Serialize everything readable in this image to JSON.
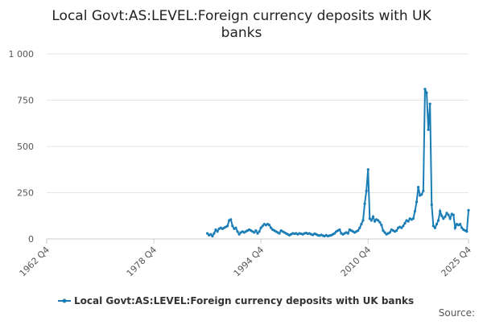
{
  "chart_data": {
    "type": "line",
    "title": "Local Govt:AS:LEVEL:Foreign currency deposits with UK banks",
    "source": "Source:",
    "xlim": [
      "1962 Q4",
      "2025 Q4"
    ],
    "xticks": [
      "1962 Q4",
      "1978 Q4",
      "1994 Q4",
      "2010 Q4",
      "2025 Q4"
    ],
    "ylim": [
      0,
      1000
    ],
    "yticks": [
      0,
      250,
      500,
      750,
      {
        "value": 1000,
        "label": "1 000"
      }
    ],
    "grid": true,
    "x": [
      "1986 Q4",
      "1987 Q1",
      "1987 Q2",
      "1987 Q3",
      "1987 Q4",
      "1988 Q1",
      "1988 Q2",
      "1988 Q3",
      "1988 Q4",
      "1989 Q1",
      "1989 Q2",
      "1989 Q3",
      "1989 Q4",
      "1990 Q1",
      "1990 Q2",
      "1990 Q3",
      "1990 Q4",
      "1991 Q1",
      "1991 Q2",
      "1991 Q3",
      "1991 Q4",
      "1992 Q1",
      "1992 Q2",
      "1992 Q3",
      "1992 Q4",
      "1993 Q1",
      "1993 Q2",
      "1993 Q3",
      "1993 Q4",
      "1994 Q1",
      "1994 Q2",
      "1994 Q3",
      "1994 Q4",
      "1995 Q1",
      "1995 Q2",
      "1995 Q3",
      "1995 Q4",
      "1996 Q1",
      "1996 Q2",
      "1996 Q3",
      "1996 Q4",
      "1997 Q1",
      "1997 Q2",
      "1997 Q3",
      "1997 Q4",
      "1998 Q1",
      "1998 Q2",
      "1998 Q3",
      "1998 Q4",
      "1999 Q1",
      "1999 Q2",
      "1999 Q3",
      "1999 Q4",
      "2000 Q1",
      "2000 Q2",
      "2000 Q3",
      "2000 Q4",
      "2001 Q1",
      "2001 Q2",
      "2001 Q3",
      "2001 Q4",
      "2002 Q1",
      "2002 Q2",
      "2002 Q3",
      "2002 Q4",
      "2003 Q1",
      "2003 Q2",
      "2003 Q3",
      "2003 Q4",
      "2004 Q1",
      "2004 Q2",
      "2004 Q3",
      "2004 Q4",
      "2005 Q1",
      "2005 Q2",
      "2005 Q3",
      "2005 Q4",
      "2006 Q1",
      "2006 Q2",
      "2006 Q3",
      "2006 Q4",
      "2007 Q1",
      "2007 Q2",
      "2007 Q3",
      "2007 Q4",
      "2008 Q1",
      "2008 Q2",
      "2008 Q3",
      "2008 Q4",
      "2009 Q1",
      "2009 Q2",
      "2009 Q3",
      "2009 Q4",
      "2010 Q1",
      "2010 Q2",
      "2010 Q3",
      "2010 Q4",
      "2011 Q1",
      "2011 Q2",
      "2011 Q3",
      "2011 Q4",
      "2012 Q1",
      "2012 Q2",
      "2012 Q3",
      "2012 Q4",
      "2013 Q1",
      "2013 Q2",
      "2013 Q3",
      "2013 Q4",
      "2014 Q1",
      "2014 Q2",
      "2014 Q3",
      "2014 Q4",
      "2015 Q1",
      "2015 Q2",
      "2015 Q3",
      "2015 Q4",
      "2016 Q1",
      "2016 Q2",
      "2016 Q3",
      "2016 Q4",
      "2017 Q1",
      "2017 Q2",
      "2017 Q3",
      "2017 Q4",
      "2018 Q1",
      "2018 Q2",
      "2018 Q3",
      "2018 Q4",
      "2019 Q1",
      "2019 Q2",
      "2019 Q3",
      "2019 Q4",
      "2020 Q1",
      "2020 Q2",
      "2020 Q3",
      "2020 Q4",
      "2021 Q1",
      "2021 Q2",
      "2021 Q3",
      "2021 Q4",
      "2022 Q1",
      "2022 Q2",
      "2022 Q3",
      "2022 Q4",
      "2023 Q1",
      "2023 Q2",
      "2023 Q3",
      "2023 Q4",
      "2024 Q1",
      "2024 Q2",
      "2024 Q3",
      "2024 Q4",
      "2025 Q1",
      "2025 Q2",
      "2025 Q3",
      "2025 Q4"
    ],
    "series": [
      {
        "name": "Local Govt:AS:LEVEL:Foreign currency deposits with UK banks",
        "color": "#1a7db6",
        "values": [
          30,
          20,
          25,
          15,
          30,
          50,
          40,
          55,
          60,
          55,
          60,
          65,
          70,
          100,
          105,
          70,
          55,
          60,
          40,
          25,
          35,
          40,
          35,
          40,
          45,
          50,
          45,
          40,
          35,
          45,
          30,
          40,
          60,
          70,
          80,
          75,
          80,
          75,
          60,
          50,
          45,
          40,
          35,
          30,
          45,
          40,
          35,
          30,
          25,
          20,
          25,
          30,
          28,
          30,
          25,
          30,
          28,
          25,
          30,
          32,
          28,
          30,
          25,
          22,
          28,
          25,
          20,
          18,
          22,
          18,
          15,
          20,
          15,
          18,
          20,
          25,
          30,
          40,
          45,
          50,
          30,
          25,
          30,
          35,
          30,
          50,
          45,
          40,
          35,
          40,
          45,
          60,
          80,
          100,
          190,
          260,
          375,
          110,
          100,
          120,
          95,
          105,
          100,
          90,
          75,
          45,
          35,
          25,
          30,
          35,
          50,
          45,
          40,
          45,
          60,
          65,
          60,
          70,
          85,
          100,
          95,
          110,
          105,
          110,
          150,
          200,
          280,
          235,
          240,
          260,
          810,
          790,
          590,
          730,
          185,
          70,
          60,
          80,
          100,
          150,
          125,
          110,
          120,
          140,
          130,
          110,
          135,
          130,
          60,
          80,
          75,
          80,
          60,
          50,
          45,
          40,
          155
        ]
      }
    ]
  }
}
